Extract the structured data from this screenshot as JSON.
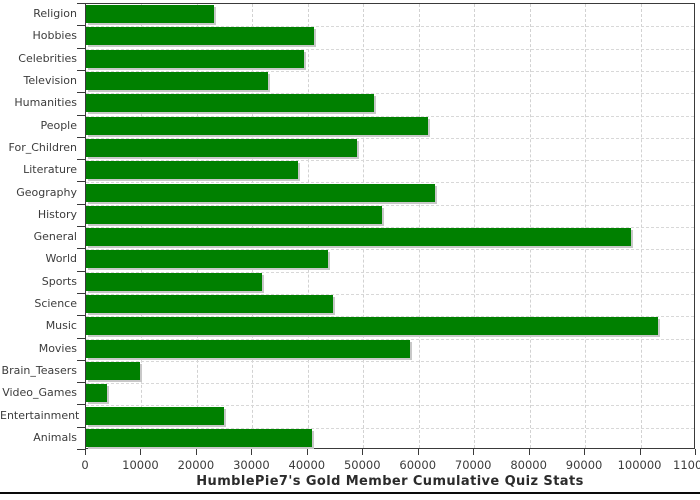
{
  "chart_data": {
    "type": "bar",
    "orientation": "horizontal",
    "title": "HumblePie7's Gold Member Cumulative Quiz Stats",
    "xlabel": "",
    "ylabel": "",
    "xlim": [
      0,
      110000
    ],
    "x_ticks": [
      0,
      10000,
      20000,
      30000,
      40000,
      50000,
      60000,
      70000,
      80000,
      90000,
      100000,
      110000
    ],
    "grid": true,
    "legend": "none",
    "categories": [
      "Religion",
      "Hobbies",
      "Celebrities",
      "Television",
      "Humanities",
      "People",
      "For_Children",
      "Literature",
      "Geography",
      "History",
      "General",
      "World",
      "Sports",
      "Science",
      "Music",
      "Movies",
      "Brain_Teasers",
      "Video_Games",
      "Entertainment",
      "Animals"
    ],
    "values": [
      23100,
      41100,
      39300,
      32800,
      51900,
      61700,
      48900,
      38300,
      63000,
      53300,
      98200,
      43700,
      31800,
      44500,
      103200,
      58500,
      9700,
      3700,
      24800,
      40700
    ],
    "bar_color": "#008000",
    "bar_shadow_color": "#c8c8c8",
    "gridline_color": "#d2d2d2",
    "axis_color": "#3a3a3a",
    "text_color": "#3c3c3c"
  }
}
